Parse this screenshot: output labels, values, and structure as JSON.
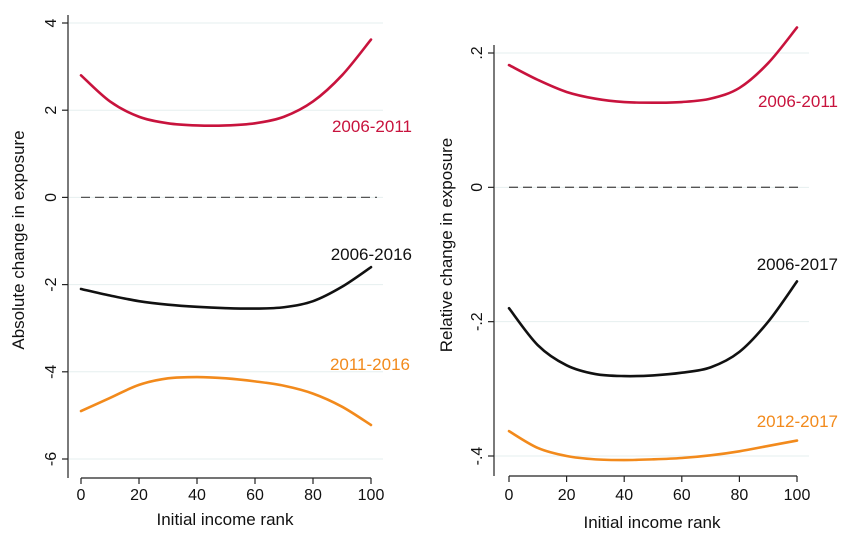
{
  "chart_data": [
    {
      "type": "line",
      "xlabel": "Initial income rank",
      "ylabel": "Absolute change in exposure",
      "xlim": [
        0,
        100
      ],
      "ylim": [
        -6,
        4
      ],
      "xticks": [
        "0",
        "20",
        "40",
        "60",
        "80",
        "100"
      ],
      "yticks": [
        {
          "value": 4,
          "label": "4"
        },
        {
          "value": 2,
          "label": "2"
        },
        {
          "value": 0,
          "label": "0"
        },
        {
          "value": -2,
          "label": "-2"
        },
        {
          "value": -4,
          "label": "-4"
        },
        {
          "value": -6,
          "label": "-6"
        }
      ],
      "grid": true,
      "reference_line": {
        "y": 0,
        "style": "dashed"
      },
      "series": [
        {
          "name": "2006-2011",
          "color": "#c8133d",
          "x": [
            0,
            10,
            20,
            30,
            40,
            50,
            60,
            70,
            80,
            90,
            100
          ],
          "y": [
            2.8,
            2.2,
            1.85,
            1.7,
            1.65,
            1.65,
            1.7,
            1.85,
            2.2,
            2.8,
            3.62
          ]
        },
        {
          "name": "2006-2016",
          "color": "#111111",
          "x": [
            0,
            10,
            20,
            30,
            40,
            50,
            60,
            70,
            80,
            90,
            100
          ],
          "y": [
            -2.1,
            -2.25,
            -2.38,
            -2.46,
            -2.51,
            -2.54,
            -2.55,
            -2.52,
            -2.38,
            -2.05,
            -1.6
          ]
        },
        {
          "name": "2011-2016",
          "color": "#f28a1c",
          "x": [
            0,
            10,
            20,
            30,
            40,
            50,
            60,
            70,
            80,
            90,
            100
          ],
          "y": [
            -4.9,
            -4.6,
            -4.3,
            -4.15,
            -4.12,
            -4.15,
            -4.22,
            -4.32,
            -4.5,
            -4.8,
            -5.22
          ]
        }
      ]
    },
    {
      "type": "line",
      "xlabel": "Initial income rank",
      "ylabel": "Relative change in exposure",
      "xlim": [
        0,
        100
      ],
      "ylim": [
        -0.4,
        0.2
      ],
      "xticks": [
        "0",
        "20",
        "40",
        "60",
        "80",
        "100"
      ],
      "yticks": [
        {
          "value": 0.2,
          "label": ".2"
        },
        {
          "value": 0,
          "label": "0"
        },
        {
          "value": -0.2,
          "label": "-.2"
        },
        {
          "value": -0.4,
          "label": "-.4"
        }
      ],
      "grid": true,
      "reference_line": {
        "y": 0,
        "style": "dashed"
      },
      "series": [
        {
          "name": "2006-2011",
          "color": "#c8133d",
          "x": [
            0,
            10,
            20,
            30,
            40,
            50,
            60,
            70,
            80,
            90,
            100
          ],
          "y": [
            0.182,
            0.16,
            0.142,
            0.132,
            0.127,
            0.126,
            0.127,
            0.132,
            0.148,
            0.185,
            0.238
          ]
        },
        {
          "name": "2006-2017",
          "color": "#111111",
          "x": [
            0,
            10,
            20,
            30,
            40,
            50,
            60,
            70,
            80,
            90,
            100
          ],
          "y": [
            -0.18,
            -0.235,
            -0.265,
            -0.278,
            -0.281,
            -0.28,
            -0.276,
            -0.268,
            -0.245,
            -0.2,
            -0.14
          ]
        },
        {
          "name": "2012-2017",
          "color": "#f28a1c",
          "x": [
            0,
            10,
            20,
            30,
            40,
            50,
            60,
            70,
            80,
            90,
            100
          ],
          "y": [
            -0.363,
            -0.388,
            -0.4,
            -0.405,
            -0.406,
            -0.405,
            -0.403,
            -0.399,
            -0.393,
            -0.385,
            -0.377
          ]
        }
      ]
    }
  ]
}
